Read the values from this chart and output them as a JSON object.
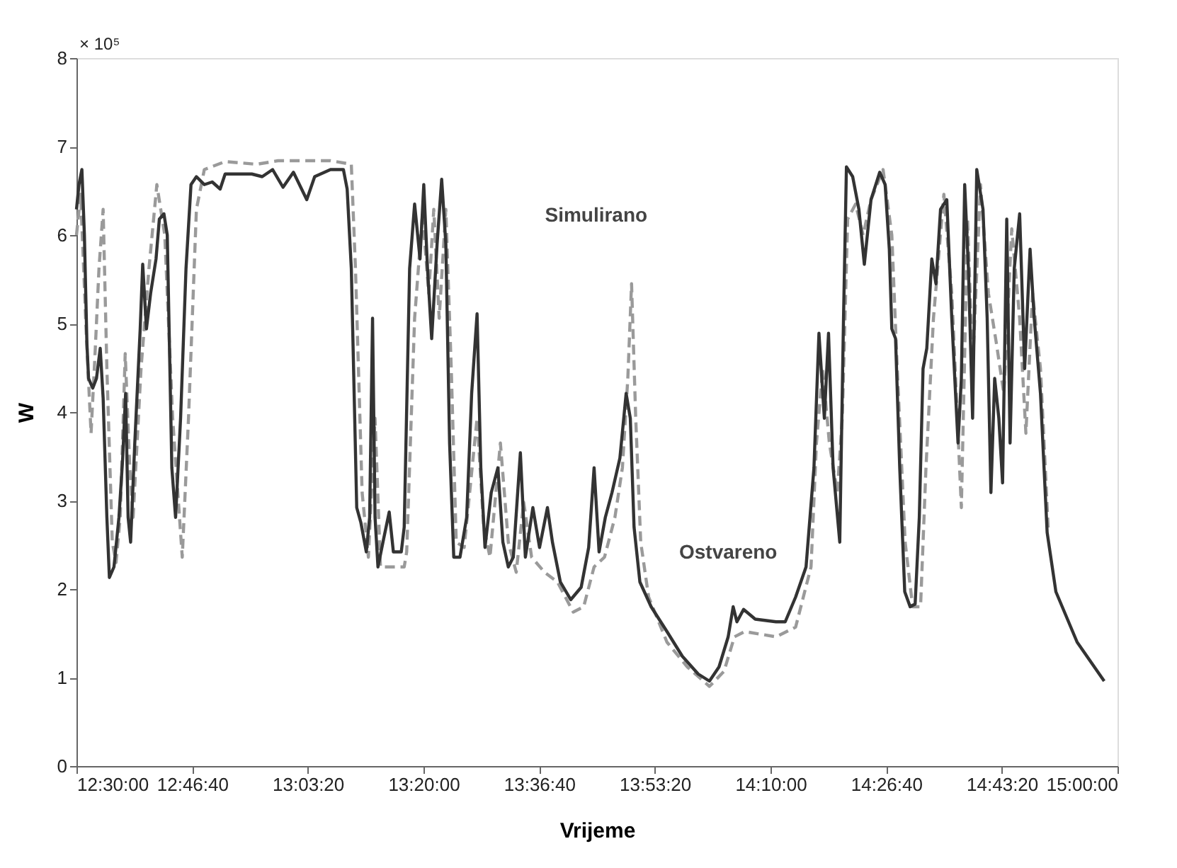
{
  "chart_data": {
    "type": "line",
    "xlabel": "Vrijeme",
    "ylabel": "W",
    "xlim": [
      12.5,
      15.0
    ],
    "ylim": [
      0,
      8
    ],
    "xticks": [
      {
        "value": 12.5,
        "label": "12:30:00"
      },
      {
        "value": 12.7777777778,
        "label": "12:46:40"
      },
      {
        "value": 13.0555555556,
        "label": "13:03:20"
      },
      {
        "value": 13.3333333333,
        "label": "13:20:00"
      },
      {
        "value": 13.6111111111,
        "label": "13:36:40"
      },
      {
        "value": 13.8888888889,
        "label": "13:53:20"
      },
      {
        "value": 14.1666666667,
        "label": "14:10:00"
      },
      {
        "value": 14.4444444444,
        "label": "14:26:40"
      },
      {
        "value": 14.7222222222,
        "label": "14:43:20"
      },
      {
        "value": 15.0,
        "label": "15:00:00"
      }
    ],
    "yticks": [
      0,
      1,
      2,
      3,
      4,
      5,
      6,
      7,
      8
    ],
    "grid": false,
    "annotations": [
      "× 10⁵",
      {
        "text": "Simulirano",
        "x": 13.833,
        "y": 5.45
      },
      {
        "text": "Ostvareno",
        "x": 14.15,
        "y": 1.64
      }
    ],
    "series": [
      {
        "color": "#9a9a9a",
        "line_style": "dashed",
        "x": [
          12.5,
          12.51,
          12.523,
          12.535,
          12.544,
          12.554,
          12.564,
          12.573,
          12.586,
          12.595,
          12.605,
          12.617,
          12.628,
          12.636,
          12.655,
          12.674,
          12.693,
          12.712,
          12.731,
          12.754,
          12.769,
          12.788,
          12.807,
          12.857,
          12.933,
          12.984,
          13.11,
          13.16,
          13.17,
          13.186,
          13.201,
          13.217,
          13.23,
          13.261,
          13.287,
          13.293,
          13.312,
          13.331,
          13.346,
          13.358,
          13.371,
          13.387,
          13.4,
          13.412,
          13.431,
          13.462,
          13.478,
          13.493,
          13.518,
          13.537,
          13.556,
          13.574,
          13.593,
          13.624,
          13.655,
          13.693,
          13.718,
          13.743,
          13.768,
          13.793,
          13.811,
          13.824,
          13.833,
          13.843,
          13.855,
          13.874,
          13.918,
          13.967,
          14.02,
          14.055,
          14.08,
          14.105,
          14.18,
          14.227,
          14.264,
          14.277,
          14.292,
          14.308,
          14.327,
          14.339,
          14.352,
          14.371,
          14.389,
          14.408,
          14.437,
          14.458,
          14.471,
          14.49,
          14.508,
          14.527,
          14.54,
          14.558,
          14.583,
          14.602,
          14.625,
          14.64,
          14.652,
          14.671,
          14.69,
          14.709,
          14.727,
          14.746,
          14.765,
          14.78,
          14.796,
          14.815,
          14.834
        ],
        "values": [
          6.0,
          6.46,
          4.94,
          3.76,
          4.6,
          5.62,
          6.29,
          4.49,
          2.53,
          2.3,
          2.81,
          4.66,
          3.37,
          2.81,
          4.49,
          5.62,
          6.57,
          6.0,
          3.93,
          2.36,
          3.93,
          6.29,
          6.74,
          6.83,
          6.8,
          6.84,
          6.84,
          6.8,
          5.62,
          3.09,
          2.36,
          3.93,
          2.25,
          2.25,
          2.25,
          2.42,
          5.06,
          6.24,
          5.34,
          6.29,
          5.06,
          6.29,
          4.49,
          2.53,
          2.47,
          3.93,
          2.7,
          2.36,
          3.65,
          2.53,
          2.19,
          2.98,
          2.36,
          2.19,
          2.08,
          1.74,
          1.8,
          2.25,
          2.36,
          2.81,
          3.37,
          4.38,
          5.45,
          3.93,
          2.53,
          1.91,
          1.4,
          1.12,
          0.9,
          1.07,
          1.46,
          1.52,
          1.46,
          1.57,
          2.25,
          3.65,
          4.49,
          3.65,
          3.09,
          3.93,
          6.18,
          6.35,
          6.0,
          6.4,
          6.74,
          6.0,
          4.49,
          2.53,
          1.8,
          1.8,
          3.37,
          5.06,
          6.46,
          5.34,
          2.92,
          6.18,
          4.49,
          6.57,
          5.34,
          4.78,
          4.21,
          6.07,
          5.06,
          3.76,
          5.34,
          4.49,
          2.64
        ]
      },
      {
        "color": "#333333",
        "line_style": "solid",
        "x": [
          12.5,
          12.506,
          12.513,
          12.519,
          12.525,
          12.529,
          12.539,
          12.548,
          12.557,
          12.564,
          12.573,
          12.579,
          12.59,
          12.602,
          12.611,
          12.618,
          12.624,
          12.63,
          12.64,
          12.653,
          12.659,
          12.668,
          12.678,
          12.691,
          12.699,
          12.71,
          12.718,
          12.729,
          12.738,
          12.75,
          12.763,
          12.775,
          12.788,
          12.807,
          12.826,
          12.845,
          12.857,
          12.921,
          12.946,
          12.971,
          12.996,
          13.021,
          13.053,
          13.072,
          13.11,
          13.141,
          13.15,
          13.16,
          13.173,
          13.183,
          13.196,
          13.204,
          13.211,
          13.217,
          13.224,
          13.236,
          13.251,
          13.261,
          13.28,
          13.287,
          13.3,
          13.312,
          13.325,
          13.334,
          13.343,
          13.353,
          13.366,
          13.377,
          13.387,
          13.396,
          13.406,
          13.421,
          13.437,
          13.449,
          13.462,
          13.471,
          13.481,
          13.496,
          13.512,
          13.524,
          13.537,
          13.549,
          13.566,
          13.578,
          13.596,
          13.612,
          13.631,
          13.643,
          13.662,
          13.687,
          13.712,
          13.73,
          13.743,
          13.755,
          13.77,
          13.786,
          13.805,
          13.82,
          13.83,
          13.839,
          13.853,
          13.88,
          13.918,
          13.955,
          13.993,
          14.02,
          14.043,
          14.065,
          14.077,
          14.086,
          14.102,
          14.13,
          14.18,
          14.202,
          14.227,
          14.252,
          14.271,
          14.283,
          14.296,
          14.306,
          14.317,
          14.333,
          14.342,
          14.349,
          14.364,
          14.379,
          14.392,
          14.408,
          14.429,
          14.442,
          14.452,
          14.458,
          14.467,
          14.477,
          14.489,
          14.502,
          14.514,
          14.524,
          14.533,
          14.542,
          14.554,
          14.564,
          14.575,
          14.59,
          14.602,
          14.617,
          14.625,
          14.633,
          14.642,
          14.652,
          14.662,
          14.677,
          14.687,
          14.696,
          14.705,
          14.715,
          14.724,
          14.734,
          14.742,
          14.752,
          14.765,
          14.777,
          14.79,
          14.8,
          14.815,
          14.831,
          14.852,
          14.903,
          14.968
        ],
        "values": [
          6.29,
          6.57,
          6.74,
          6.0,
          4.78,
          4.38,
          4.27,
          4.38,
          4.72,
          4.16,
          2.81,
          2.13,
          2.25,
          2.81,
          3.48,
          4.21,
          2.81,
          2.53,
          3.65,
          4.94,
          5.67,
          4.94,
          5.34,
          5.73,
          6.18,
          6.24,
          6.0,
          3.37,
          2.81,
          3.93,
          5.62,
          6.57,
          6.66,
          6.57,
          6.6,
          6.52,
          6.69,
          6.69,
          6.66,
          6.74,
          6.54,
          6.71,
          6.4,
          6.66,
          6.74,
          6.74,
          6.52,
          5.62,
          2.92,
          2.75,
          2.42,
          2.81,
          5.06,
          2.81,
          2.25,
          2.53,
          2.87,
          2.42,
          2.42,
          2.7,
          5.62,
          6.35,
          5.73,
          6.57,
          5.62,
          4.83,
          5.9,
          6.63,
          5.9,
          3.65,
          2.36,
          2.36,
          2.81,
          4.21,
          5.11,
          3.37,
          2.47,
          3.09,
          3.37,
          2.53,
          2.25,
          2.36,
          3.54,
          2.36,
          2.92,
          2.47,
          2.92,
          2.53,
          2.08,
          1.88,
          2.02,
          2.47,
          3.37,
          2.42,
          2.81,
          3.09,
          3.48,
          4.21,
          3.93,
          2.7,
          2.08,
          1.8,
          1.52,
          1.24,
          1.04,
          0.96,
          1.12,
          1.46,
          1.8,
          1.63,
          1.77,
          1.66,
          1.63,
          1.63,
          1.91,
          2.25,
          3.37,
          4.89,
          3.93,
          4.89,
          3.37,
          2.53,
          5.06,
          6.77,
          6.66,
          6.29,
          5.67,
          6.4,
          6.71,
          6.57,
          5.84,
          4.94,
          4.83,
          3.37,
          1.97,
          1.8,
          1.83,
          2.81,
          4.49,
          4.72,
          5.73,
          5.45,
          6.29,
          6.4,
          5.06,
          3.65,
          4.38,
          6.57,
          5.62,
          3.93,
          6.74,
          6.29,
          5.06,
          3.09,
          4.38,
          3.93,
          3.2,
          6.18,
          3.65,
          5.62,
          6.24,
          4.49,
          5.84,
          5.06,
          4.21,
          2.64,
          1.97,
          1.4,
          0.96
        ]
      }
    ]
  }
}
